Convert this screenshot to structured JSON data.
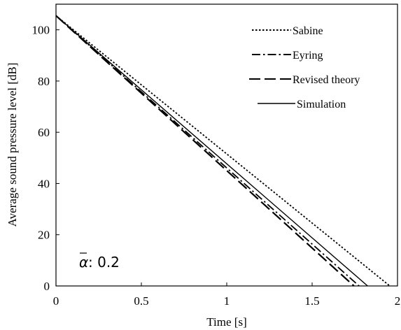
{
  "chart_data": {
    "type": "line",
    "xlabel": "Time [s]",
    "ylabel": "Average sound pressure level [dB]",
    "xlim": [
      0,
      2
    ],
    "ylim": [
      0,
      110
    ],
    "xticks": [
      0,
      0.5,
      1,
      1.5,
      2
    ],
    "xtick_labels": [
      "0",
      "0.5",
      "1",
      "1.5",
      "2"
    ],
    "yticks": [
      0,
      20,
      40,
      60,
      80,
      100
    ],
    "ytick_labels": [
      "0",
      "20",
      "40",
      "60",
      "80",
      "100"
    ],
    "grid": false,
    "legend_position": "top-right",
    "annotation": {
      "symbol": "α",
      "text": ": 0.2"
    },
    "series": [
      {
        "name": "Sabine",
        "style": "dotted",
        "x": [
          0,
          1.955
        ],
        "y": [
          105.5,
          0
        ]
      },
      {
        "name": "Eyring",
        "style": "dash-dot",
        "x": [
          0,
          1.775
        ],
        "y": [
          105.5,
          0
        ]
      },
      {
        "name": "Revised theory",
        "style": "long-dash",
        "x": [
          0,
          1.745
        ],
        "y": [
          105.5,
          0
        ]
      },
      {
        "name": "Simulation",
        "style": "solid",
        "x": [
          0,
          1.825
        ],
        "y": [
          105.5,
          0
        ]
      }
    ]
  }
}
